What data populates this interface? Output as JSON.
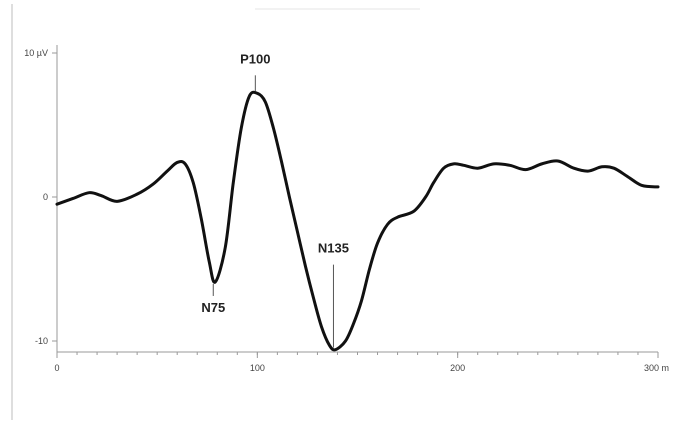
{
  "chart_data": {
    "type": "line",
    "title": "",
    "xlabel": "",
    "ylabel": "",
    "xlim": [
      0,
      300
    ],
    "ylim": [
      -10,
      10
    ],
    "x_ticks": [
      {
        "value": 0,
        "label": "0"
      },
      {
        "value": 100,
        "label": "100"
      },
      {
        "value": 200,
        "label": "200"
      },
      {
        "value": 300,
        "label": "300 m"
      }
    ],
    "y_ticks": [
      {
        "value": 10,
        "label": "10 µV"
      },
      {
        "value": 0,
        "label": "0"
      },
      {
        "value": -10,
        "label": "-10"
      }
    ],
    "series": [
      {
        "x": [
          0,
          8,
          16,
          22,
          30,
          40,
          48,
          55,
          60,
          64,
          68,
          72,
          76,
          79,
          84,
          88,
          92,
          96,
          100,
          104,
          108,
          112,
          116,
          120,
          124,
          128,
          132,
          136,
          139,
          144,
          148,
          152,
          156,
          160,
          165,
          170,
          178,
          184,
          188,
          193,
          198,
          203,
          210,
          218,
          226,
          234,
          242,
          250,
          258,
          265,
          272,
          278,
          285,
          292,
          300
        ],
        "y": [
          -0.5,
          -0.1,
          0.3,
          0.1,
          -0.3,
          0.2,
          0.9,
          1.8,
          2.4,
          2.3,
          1.0,
          -1.5,
          -4.5,
          -5.9,
          -3.5,
          1.0,
          4.8,
          7.0,
          7.2,
          6.6,
          4.8,
          2.5,
          0.0,
          -2.4,
          -4.8,
          -7.0,
          -9.0,
          -10.3,
          -10.6,
          -10.0,
          -8.8,
          -7.2,
          -5.0,
          -3.2,
          -1.9,
          -1.4,
          -1.0,
          0.0,
          1.0,
          2.0,
          2.3,
          2.2,
          2.0,
          2.3,
          2.2,
          1.9,
          2.3,
          2.5,
          2.0,
          1.8,
          2.1,
          2.0,
          1.4,
          0.8,
          0.7
        ]
      }
    ],
    "annotations": [
      {
        "label": "P100",
        "x": 99,
        "y": 7.2,
        "position": "above"
      },
      {
        "label": "N75",
        "x": 78,
        "y": -5.9,
        "position": "below"
      },
      {
        "label": "N135",
        "x": 138,
        "y": -10.6,
        "position": "above"
      }
    ],
    "grid": false,
    "colors": {
      "trace": "#111111",
      "axis": "#9a9a9a"
    }
  }
}
